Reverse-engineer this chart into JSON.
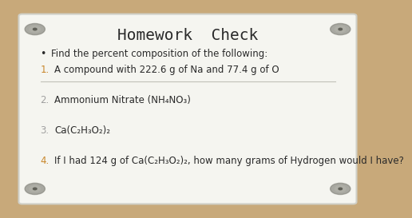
{
  "title": "Homework  Check",
  "bg_color": "#c8a97a",
  "card_color": "#f5f5f0",
  "card_edge_color": "#d0d0c8",
  "title_color": "#2a2a2a",
  "bullet_color": "#2a2a2a",
  "number_colors": [
    "#c8862a",
    "#a0a0a0",
    "#a0a0a0",
    "#c8862a"
  ],
  "bullet_text": "Find the percent composition of the following:",
  "items": [
    "A compound with 222.6 g of Na and 77.4 g of O",
    "Ammonium Nitrate (NH₄NO₃)",
    "Ca(C₂H₃O₂)₂",
    "If I had 124 g of Ca(C₂H₃O₂)₂, how many grams of Hydrogen would I have?"
  ],
  "screw_color": "#888880",
  "line_color": "#c0c0b8"
}
